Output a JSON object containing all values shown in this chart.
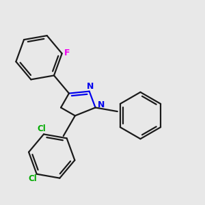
{
  "background_color": "#e8e8e8",
  "bond_color": "#1a1a1a",
  "nitrogen_color": "#0000ee",
  "fluorine_color": "#ee00ee",
  "chlorine_color": "#00aa00",
  "line_width": 1.6,
  "figsize": [
    3.0,
    3.0
  ],
  "dpi": 100,
  "xlim": [
    0.0,
    1.0
  ],
  "ylim": [
    0.0,
    1.0
  ]
}
